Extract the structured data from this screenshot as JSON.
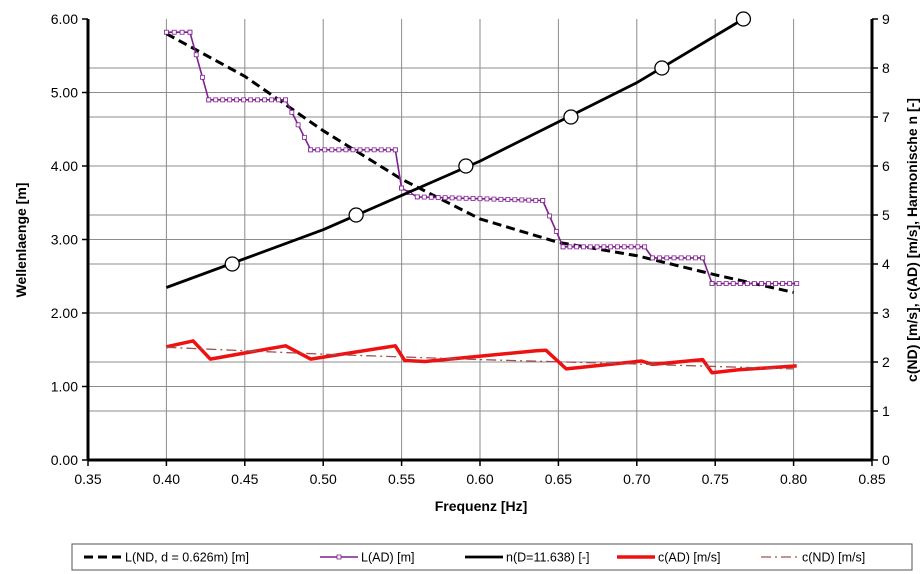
{
  "chart_data": {
    "type": "line",
    "xlabel": "Frequenz [Hz]",
    "ylabel": "Wellenlaenge [m]",
    "y2label": "c(ND) [m/s], c(AD) [m/s], Harmonische n [-]",
    "xlim": [
      0.35,
      0.85
    ],
    "ylim": [
      0,
      6
    ],
    "y2lim": [
      0,
      9
    ],
    "grid": true,
    "legend_position": "bottom",
    "x_ticks": [
      "0.35",
      "0.40",
      "0.45",
      "0.50",
      "0.55",
      "0.60",
      "0.65",
      "0.70",
      "0.75",
      "0.80",
      "0.85"
    ],
    "y_ticks": [
      "0.00",
      "1.00",
      "2.00",
      "3.00",
      "4.00",
      "5.00",
      "6.00"
    ],
    "y2_ticks": [
      "0",
      "1",
      "2",
      "3",
      "4",
      "5",
      "6",
      "7",
      "8",
      "9"
    ],
    "series": [
      {
        "name": "L(ND, d = 0.626m) [m]",
        "axis": "left",
        "color": "#000000",
        "style": "dashed",
        "points": [
          [
            0.4,
            5.8
          ],
          [
            0.45,
            5.22
          ],
          [
            0.5,
            4.48
          ],
          [
            0.55,
            3.82
          ],
          [
            0.6,
            3.28
          ],
          [
            0.65,
            2.96
          ],
          [
            0.7,
            2.78
          ],
          [
            0.75,
            2.52
          ],
          [
            0.8,
            2.28
          ]
        ]
      },
      {
        "name": "L(AD) [m]",
        "axis": "left",
        "color": "#7f1f8f",
        "style": "step",
        "points": [
          [
            0.4,
            5.82
          ],
          [
            0.415,
            5.82
          ],
          [
            0.427,
            4.9
          ],
          [
            0.476,
            4.9
          ],
          [
            0.492,
            4.22
          ],
          [
            0.546,
            4.22
          ],
          [
            0.55,
            3.7
          ],
          [
            0.56,
            3.58
          ],
          [
            0.64,
            3.53
          ],
          [
            0.653,
            2.9
          ],
          [
            0.705,
            2.9
          ],
          [
            0.71,
            2.75
          ],
          [
            0.742,
            2.75
          ],
          [
            0.748,
            2.4
          ],
          [
            0.802,
            2.4
          ]
        ]
      },
      {
        "name": "n(D=11.638) [-]",
        "axis": "right",
        "color": "#000000",
        "style": "solid",
        "points": [
          [
            0.4,
            3.52
          ],
          [
            0.5,
            4.7
          ],
          [
            0.6,
            6.1
          ],
          [
            0.7,
            7.7
          ],
          [
            0.768,
            9.0
          ]
        ],
        "markers": [
          [
            0.442,
            4.0
          ],
          [
            0.521,
            5.0
          ],
          [
            0.591,
            6.0
          ],
          [
            0.658,
            7.0
          ],
          [
            0.716,
            8.0
          ],
          [
            0.768,
            9.0
          ]
        ]
      },
      {
        "name": "c(AD) [m/s]",
        "axis": "right",
        "color": "#ee1111",
        "style": "solid",
        "points": [
          [
            0.4,
            2.31
          ],
          [
            0.417,
            2.43
          ],
          [
            0.428,
            2.06
          ],
          [
            0.476,
            2.33
          ],
          [
            0.492,
            2.06
          ],
          [
            0.546,
            2.33
          ],
          [
            0.552,
            2.03
          ],
          [
            0.565,
            2.01
          ],
          [
            0.636,
            2.23
          ],
          [
            0.642,
            2.24
          ],
          [
            0.655,
            1.86
          ],
          [
            0.703,
            2.02
          ],
          [
            0.71,
            1.95
          ],
          [
            0.742,
            2.05
          ],
          [
            0.748,
            1.78
          ],
          [
            0.765,
            1.84
          ],
          [
            0.802,
            1.92
          ]
        ]
      },
      {
        "name": "c(ND) [m/s]",
        "axis": "right",
        "color": "#a05050",
        "style": "dashdot",
        "points": [
          [
            0.4,
            2.3
          ],
          [
            0.5,
            2.16
          ],
          [
            0.6,
            2.05
          ],
          [
            0.7,
            1.96
          ],
          [
            0.8,
            1.86
          ]
        ]
      }
    ]
  }
}
